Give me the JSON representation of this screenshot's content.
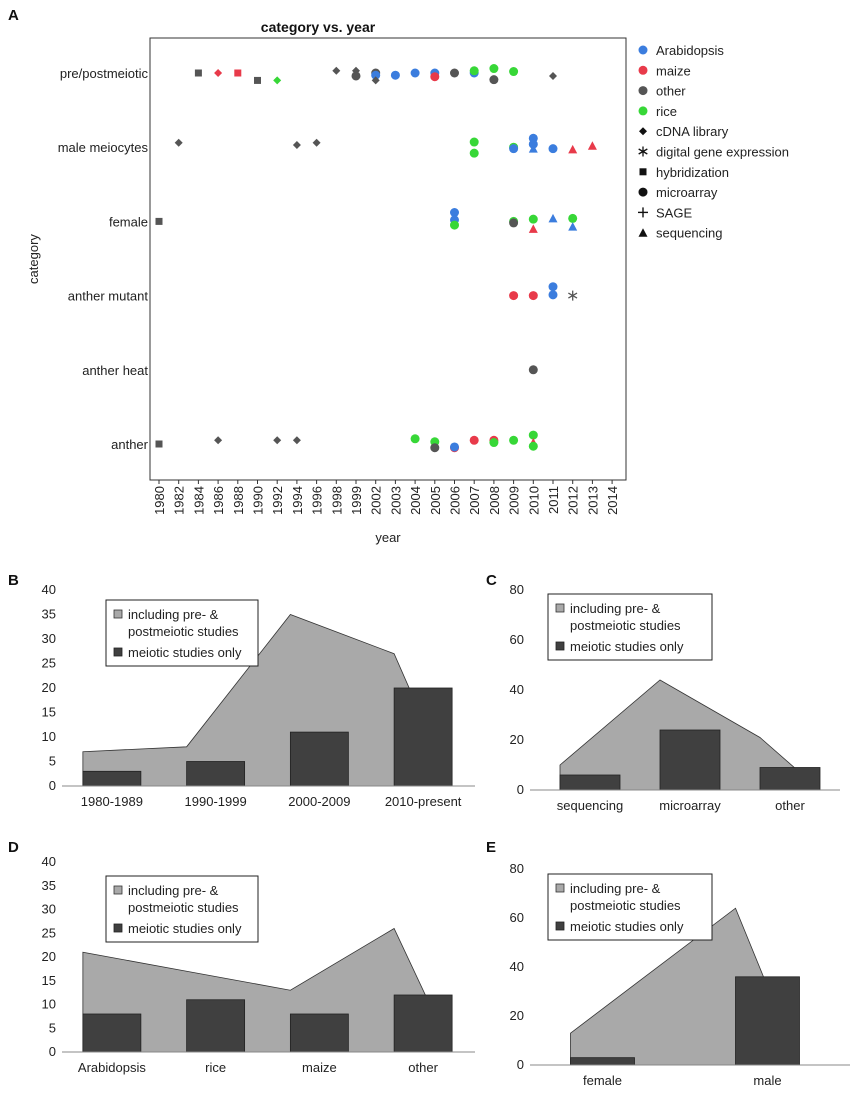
{
  "panels": [
    "A",
    "B",
    "C",
    "D",
    "E"
  ],
  "colors": {
    "Arabidopsis": "#3b7dde",
    "maize": "#e83a4a",
    "other": "#555555",
    "rice": "#37d737",
    "bar_light": "#a9a9a9",
    "bar_dark": "#404040"
  },
  "chart_data": [
    {
      "type": "scatter",
      "panel": "A",
      "title": "category vs. year",
      "xlabel": "year",
      "ylabel": "category",
      "categories": [
        "pre/postmeiotic",
        "male meiocytes",
        "female",
        "anther mutant",
        "anther heat",
        "anther"
      ],
      "xticks": [
        "1980",
        "1982",
        "1984",
        "1986",
        "1988",
        "1990",
        "1992",
        "1994",
        "1996",
        "1998",
        "1999",
        "2002",
        "2003",
        "2004",
        "2005",
        "2006",
        "2007",
        "2008",
        "2009",
        "2010",
        "2011",
        "2012",
        "2013",
        "2014"
      ],
      "legend": [
        {
          "label": "Arabidopsis",
          "symbol": "circle",
          "color": "#3b7dde"
        },
        {
          "label": "maize",
          "symbol": "circle",
          "color": "#e83a4a"
        },
        {
          "label": "other",
          "symbol": "circle",
          "color": "#555555"
        },
        {
          "label": "rice",
          "symbol": "circle",
          "color": "#37d737"
        },
        {
          "label": "cDNA library",
          "symbol": "diamond",
          "color": "#111111"
        },
        {
          "label": "digital gene expression",
          "symbol": "asterisk",
          "color": "#111111"
        },
        {
          "label": "hybridization",
          "symbol": "square",
          "color": "#111111"
        },
        {
          "label": "microarray",
          "symbol": "circle",
          "color": "#111111"
        },
        {
          "label": "SAGE",
          "symbol": "plus",
          "color": "#111111"
        },
        {
          "label": "sequencing",
          "symbol": "triangle",
          "color": "#111111"
        }
      ],
      "points": [
        {
          "x": "1984",
          "y": "pre/postmeiotic",
          "species": "other",
          "method": "hybridization"
        },
        {
          "x": "1986",
          "y": "pre/postmeiotic",
          "species": "maize",
          "method": "cDNA library"
        },
        {
          "x": "1988",
          "y": "pre/postmeiotic",
          "species": "maize",
          "method": "hybridization"
        },
        {
          "x": "1990",
          "y": "pre/postmeiotic",
          "species": "other",
          "method": "hybridization",
          "dy": 0.1
        },
        {
          "x": "1992",
          "y": "pre/postmeiotic",
          "species": "rice",
          "method": "cDNA library",
          "dy": 0.1
        },
        {
          "x": "1998",
          "y": "pre/postmeiotic",
          "species": "other",
          "method": "cDNA library",
          "dy": -0.03
        },
        {
          "x": "1999",
          "y": "pre/postmeiotic",
          "species": "other",
          "method": "cDNA library",
          "dy": -0.03
        },
        {
          "x": "1999",
          "y": "pre/postmeiotic",
          "species": "other",
          "method": "microarray",
          "dy": 0.04
        },
        {
          "x": "2002",
          "y": "pre/postmeiotic",
          "species": "other",
          "method": "microarray"
        },
        {
          "x": "2002",
          "y": "pre/postmeiotic",
          "species": "Arabidopsis",
          "method": "microarray",
          "dy": 0.03
        },
        {
          "x": "2002",
          "y": "pre/postmeiotic",
          "species": "other",
          "method": "cDNA library",
          "dy": 0.1
        },
        {
          "x": "2003",
          "y": "pre/postmeiotic",
          "species": "Arabidopsis",
          "method": "microarray",
          "dy": 0.03
        },
        {
          "x": "2004",
          "y": "pre/postmeiotic",
          "species": "Arabidopsis",
          "method": "microarray"
        },
        {
          "x": "2005",
          "y": "pre/postmeiotic",
          "species": "Arabidopsis",
          "method": "microarray"
        },
        {
          "x": "2005",
          "y": "pre/postmeiotic",
          "species": "maize",
          "method": "microarray",
          "dy": 0.05
        },
        {
          "x": "2006",
          "y": "pre/postmeiotic",
          "species": "other",
          "method": "microarray"
        },
        {
          "x": "2007",
          "y": "pre/postmeiotic",
          "species": "Arabidopsis",
          "method": "microarray"
        },
        {
          "x": "2007",
          "y": "pre/postmeiotic",
          "species": "rice",
          "method": "microarray",
          "dy": -0.03
        },
        {
          "x": "2008",
          "y": "pre/postmeiotic",
          "species": "rice",
          "method": "microarray",
          "dy": -0.06
        },
        {
          "x": "2008",
          "y": "pre/postmeiotic",
          "species": "other",
          "method": "microarray",
          "dy": 0.09
        },
        {
          "x": "2009",
          "y": "pre/postmeiotic",
          "species": "rice",
          "method": "microarray",
          "dy": -0.02
        },
        {
          "x": "2011",
          "y": "pre/postmeiotic",
          "species": "other",
          "method": "cDNA library",
          "dy": 0.04
        },
        {
          "x": "1982",
          "y": "male meiocytes",
          "species": "other",
          "method": "cDNA library",
          "dy": -0.06
        },
        {
          "x": "1994",
          "y": "male meiocytes",
          "species": "other",
          "method": "cDNA library",
          "dy": -0.03
        },
        {
          "x": "1996",
          "y": "male meiocytes",
          "species": "other",
          "method": "cDNA library",
          "dy": -0.06
        },
        {
          "x": "2007",
          "y": "male meiocytes",
          "species": "rice",
          "method": "microarray",
          "dy": -0.07
        },
        {
          "x": "2007",
          "y": "male meiocytes",
          "species": "rice",
          "method": "microarray",
          "dy": 0.08
        },
        {
          "x": "2009",
          "y": "male meiocytes",
          "species": "rice",
          "method": "microarray"
        },
        {
          "x": "2009",
          "y": "male meiocytes",
          "species": "Arabidopsis",
          "method": "microarray",
          "dy": 0.02
        },
        {
          "x": "2010",
          "y": "male meiocytes",
          "species": "Arabidopsis",
          "method": "microarray",
          "dy": -0.12
        },
        {
          "x": "2010",
          "y": "male meiocytes",
          "species": "Arabidopsis",
          "method": "microarray",
          "dy": -0.04
        },
        {
          "x": "2010",
          "y": "male meiocytes",
          "species": "Arabidopsis",
          "method": "sequencing",
          "dy": 0.02
        },
        {
          "x": "2011",
          "y": "male meiocytes",
          "species": "Arabidopsis",
          "method": "microarray",
          "dy": 0.02
        },
        {
          "x": "2012",
          "y": "male meiocytes",
          "species": "maize",
          "method": "sequencing",
          "dy": 0.03
        },
        {
          "x": "2013",
          "y": "male meiocytes",
          "species": "maize",
          "method": "sequencing",
          "dy": -0.02
        },
        {
          "x": "1980",
          "y": "female",
          "species": "other",
          "method": "hybridization"
        },
        {
          "x": "2006",
          "y": "female",
          "species": "Arabidopsis",
          "method": "microarray",
          "dy": -0.12
        },
        {
          "x": "2006",
          "y": "female",
          "species": "Arabidopsis",
          "method": "microarray",
          "dy": -0.02
        },
        {
          "x": "2006",
          "y": "female",
          "species": "rice",
          "method": "microarray",
          "dy": 0.05
        },
        {
          "x": "2009",
          "y": "female",
          "species": "rice",
          "method": "microarray"
        },
        {
          "x": "2009",
          "y": "female",
          "species": "other",
          "method": "microarray",
          "dy": 0.02
        },
        {
          "x": "2010",
          "y": "female",
          "species": "rice",
          "method": "microarray",
          "dy": -0.03
        },
        {
          "x": "2010",
          "y": "female",
          "species": "maize",
          "method": "sequencing",
          "dy": 0.1
        },
        {
          "x": "2011",
          "y": "female",
          "species": "Arabidopsis",
          "method": "sequencing",
          "dy": -0.04
        },
        {
          "x": "2012",
          "y": "female",
          "species": "rice",
          "method": "microarray",
          "dy": -0.04
        },
        {
          "x": "2012",
          "y": "female",
          "species": "Arabidopsis",
          "method": "sequencing",
          "dy": 0.07
        },
        {
          "x": "2009",
          "y": "anther mutant",
          "species": "maize",
          "method": "microarray"
        },
        {
          "x": "2010",
          "y": "anther mutant",
          "species": "maize",
          "method": "microarray"
        },
        {
          "x": "2011",
          "y": "anther mutant",
          "species": "Arabidopsis",
          "method": "microarray",
          "dy": -0.12
        },
        {
          "x": "2011",
          "y": "anther mutant",
          "species": "Arabidopsis",
          "method": "microarray",
          "dy": -0.01
        },
        {
          "x": "2012",
          "y": "anther mutant",
          "species": "other",
          "method": "digital gene expression"
        },
        {
          "x": "2010",
          "y": "anther heat",
          "species": "other",
          "method": "microarray"
        },
        {
          "x": "1980",
          "y": "anther",
          "species": "other",
          "method": "hybridization"
        },
        {
          "x": "1986",
          "y": "anther",
          "species": "other",
          "method": "cDNA library",
          "dy": -0.05
        },
        {
          "x": "1992",
          "y": "anther",
          "species": "other",
          "method": "cDNA library",
          "dy": -0.05
        },
        {
          "x": "1994",
          "y": "anther",
          "species": "other",
          "method": "cDNA library",
          "dy": -0.05
        },
        {
          "x": "2004",
          "y": "anther",
          "species": "rice",
          "method": "microarray",
          "dy": -0.07
        },
        {
          "x": "2005",
          "y": "anther",
          "species": "rice",
          "method": "microarray",
          "dy": -0.03
        },
        {
          "x": "2005",
          "y": "anther",
          "species": "other",
          "method": "microarray",
          "dy": 0.05
        },
        {
          "x": "2006",
          "y": "anther",
          "species": "maize",
          "method": "microarray",
          "dy": 0.05
        },
        {
          "x": "2006",
          "y": "anther",
          "species": "Arabidopsis",
          "method": "microarray",
          "dy": 0.04
        },
        {
          "x": "2007",
          "y": "anther",
          "species": "maize",
          "method": "microarray",
          "dy": -0.05
        },
        {
          "x": "2008",
          "y": "anther",
          "species": "maize",
          "method": "microarray",
          "dy": -0.05
        },
        {
          "x": "2008",
          "y": "anther",
          "species": "rice",
          "method": "microarray",
          "dy": -0.02
        },
        {
          "x": "2009",
          "y": "anther",
          "species": "rice",
          "method": "microarray",
          "dy": -0.05
        },
        {
          "x": "2010",
          "y": "anther",
          "species": "rice",
          "method": "microarray",
          "dy": -0.12
        },
        {
          "x": "2010",
          "y": "anther",
          "species": "maize",
          "method": "sequencing",
          "dy": -0.02
        },
        {
          "x": "2010",
          "y": "anther",
          "species": "rice",
          "method": "microarray",
          "dy": 0.03
        }
      ]
    },
    {
      "type": "bar",
      "panel": "B",
      "categories": [
        "1980-1989",
        "1990-1999",
        "2000-2009",
        "2010-present"
      ],
      "series": [
        {
          "name": "including pre- & postmeiotic studies",
          "values": [
            7,
            8,
            35,
            27
          ]
        },
        {
          "name": "meiotic studies only",
          "values": [
            3,
            5,
            11,
            20
          ]
        }
      ],
      "ylim": [
        0,
        40
      ],
      "yticks": [
        "0",
        "5",
        "10",
        "15",
        "20",
        "25",
        "30",
        "35",
        "40"
      ],
      "legend": [
        "including pre- &",
        "postmeiotic studies",
        "meiotic studies only"
      ]
    },
    {
      "type": "bar",
      "panel": "C",
      "categories": [
        "sequencing",
        "microarray",
        "other"
      ],
      "series": [
        {
          "name": "including pre- & postmeiotic studies",
          "values": [
            10,
            44,
            21
          ]
        },
        {
          "name": "meiotic studies only",
          "values": [
            6,
            24,
            9
          ]
        }
      ],
      "ylim": [
        0,
        80
      ],
      "yticks": [
        "0",
        "20",
        "40",
        "60",
        "80"
      ],
      "legend": [
        "including pre- &",
        "postmeiotic studies",
        "meiotic studies only"
      ]
    },
    {
      "type": "bar",
      "panel": "D",
      "categories": [
        "Arabidopsis",
        "rice",
        "maize",
        "other"
      ],
      "series": [
        {
          "name": "including pre- & postmeiotic studies",
          "values": [
            21,
            17,
            13,
            26
          ]
        },
        {
          "name": "meiotic studies only",
          "values": [
            8,
            11,
            8,
            12
          ]
        }
      ],
      "ylim": [
        0,
        40
      ],
      "yticks": [
        "0",
        "5",
        "10",
        "15",
        "20",
        "25",
        "30",
        "35",
        "40"
      ],
      "legend": [
        "including pre- &",
        "postmeiotic studies",
        "meiotic studies only"
      ]
    },
    {
      "type": "bar",
      "panel": "E",
      "categories": [
        "female",
        "male"
      ],
      "series": [
        {
          "name": "including pre- & postmeiotic studies",
          "values": [
            13,
            64
          ]
        },
        {
          "name": "meiotic studies only",
          "values": [
            3,
            36
          ]
        }
      ],
      "ylim": [
        0,
        80
      ],
      "yticks": [
        "0",
        "20",
        "40",
        "60",
        "80"
      ],
      "legend": [
        "including pre- &",
        "postmeiotic studies",
        "meiotic studies only"
      ]
    }
  ]
}
